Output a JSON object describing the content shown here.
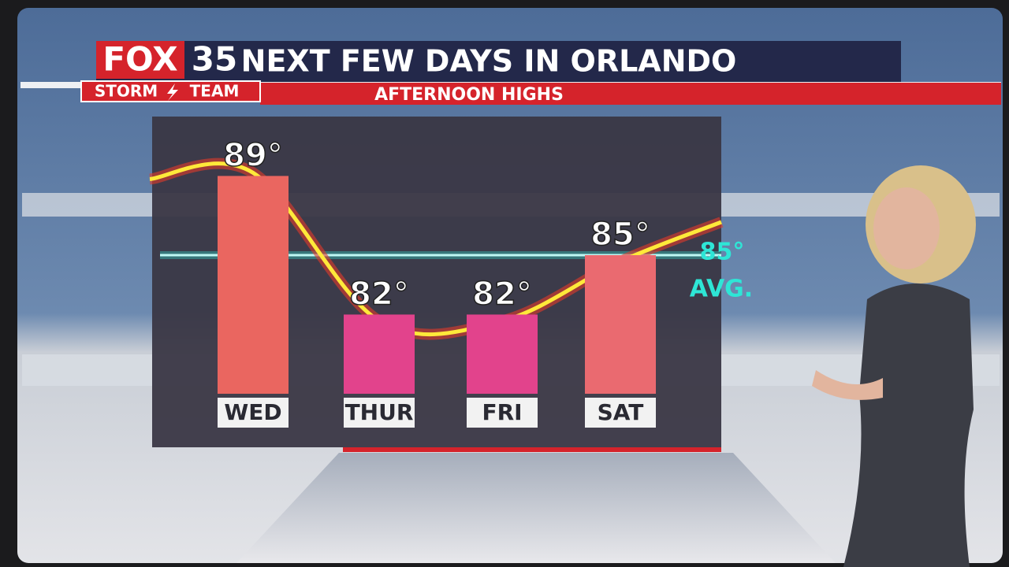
{
  "chart_data": {
    "type": "bar",
    "logo": {
      "network": "FOX",
      "channel": "35",
      "team_left": "STORM",
      "team_right": "TEAM"
    },
    "title": "NEXT FEW DAYS IN ORLANDO",
    "subtitle": "AFTERNOON HIGHS",
    "categories": [
      "WED",
      "THUR",
      "FRI",
      "SAT"
    ],
    "values": [
      89,
      82,
      82,
      85
    ],
    "value_labels": [
      "89°",
      "82°",
      "82°",
      "85°"
    ],
    "colors": [
      "#ea6660",
      "#e2438c",
      "#e2438c",
      "#ea6a70"
    ],
    "ylim": [
      78,
      92
    ],
    "average": {
      "value": 85,
      "value_label": "85°",
      "label": "AVG.",
      "color": "#2ee6d6"
    }
  }
}
